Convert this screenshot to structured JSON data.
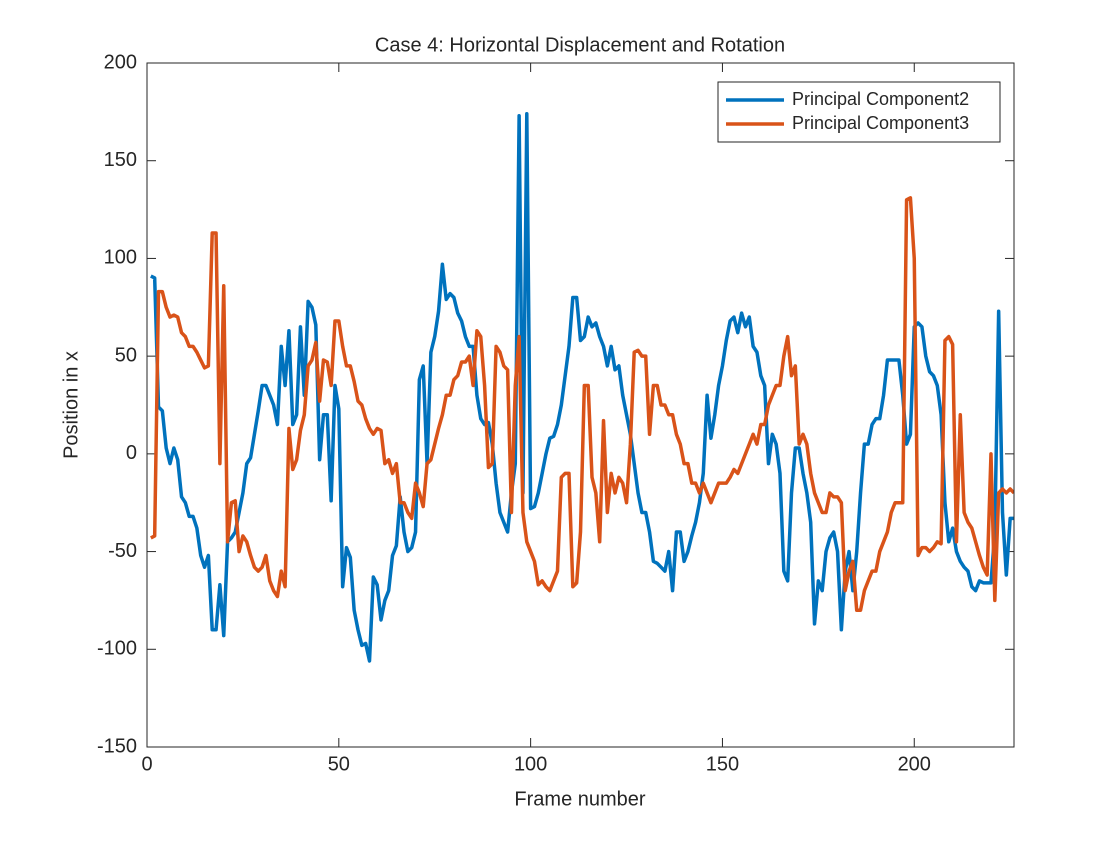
{
  "chart_data": {
    "type": "line",
    "title": "Case 4: Horizontal Displacement and Rotation",
    "x_label": "Frame number",
    "y_label": "Position in x",
    "x": [
      1,
      2,
      3,
      4,
      5,
      6,
      7,
      8,
      9,
      10,
      11,
      12,
      13,
      14,
      15,
      16,
      17,
      18,
      19,
      20,
      21,
      22,
      23,
      24,
      25,
      26,
      27,
      28,
      29,
      30,
      31,
      32,
      33,
      34,
      35,
      36,
      37,
      38,
      39,
      40,
      41,
      42,
      43,
      44,
      45,
      46,
      47,
      48,
      49,
      50,
      51,
      52,
      53,
      54,
      55,
      56,
      57,
      58,
      59,
      60,
      61,
      62,
      63,
      64,
      65,
      66,
      67,
      68,
      69,
      70,
      71,
      72,
      73,
      74,
      75,
      76,
      77,
      78,
      79,
      80,
      81,
      82,
      83,
      84,
      85,
      86,
      87,
      88,
      89,
      90,
      91,
      92,
      93,
      94,
      95,
      96,
      97,
      98,
      99,
      100,
      101,
      102,
      103,
      104,
      105,
      106,
      107,
      108,
      109,
      110,
      111,
      112,
      113,
      114,
      115,
      116,
      117,
      118,
      119,
      120,
      121,
      122,
      123,
      124,
      125,
      126,
      127,
      128,
      129,
      130,
      131,
      132,
      133,
      134,
      135,
      136,
      137,
      138,
      139,
      140,
      141,
      142,
      143,
      144,
      145,
      146,
      147,
      148,
      149,
      150,
      151,
      152,
      153,
      154,
      155,
      156,
      157,
      158,
      159,
      160,
      161,
      162,
      163,
      164,
      165,
      166,
      167,
      168,
      169,
      170,
      171,
      172,
      173,
      174,
      175,
      176,
      177,
      178,
      179,
      180,
      181,
      182,
      183,
      184,
      185,
      186,
      187,
      188,
      189,
      190,
      191,
      192,
      193,
      194,
      195,
      196,
      197,
      198,
      199,
      200,
      201,
      202,
      203,
      204,
      205,
      206,
      207,
      208,
      209,
      210,
      211,
      212,
      213,
      214,
      215,
      216,
      217,
      218,
      219,
      220,
      221,
      222,
      223,
      224,
      225,
      226
    ],
    "series": [
      {
        "name": "Principal Component2",
        "color": "#0072BD",
        "values": [
          91,
          90,
          24,
          22,
          3,
          -5,
          3,
          -3,
          -22,
          -25,
          -32,
          -32,
          -38,
          -52,
          -58,
          -52,
          -90,
          -90,
          -67,
          -93,
          -45,
          -43,
          -40,
          -30,
          -20,
          -5,
          -2,
          10,
          22,
          35,
          35,
          30,
          25,
          15,
          55,
          35,
          63,
          15,
          20,
          65,
          30,
          78,
          75,
          66,
          -3,
          20,
          20,
          -24,
          35,
          23,
          -68,
          -48,
          -53,
          -80,
          -90,
          -98,
          -97,
          -106,
          -63,
          -67,
          -85,
          -75,
          -70,
          -52,
          -47,
          -22,
          -40,
          -50,
          -48,
          -40,
          38,
          45,
          -5,
          52,
          60,
          73,
          97,
          79,
          82,
          80,
          72,
          68,
          60,
          55,
          55,
          30,
          18,
          15,
          16,
          5,
          -15,
          -30,
          -35,
          -40,
          -20,
          -5,
          173,
          -20,
          174,
          -28,
          -27,
          -20,
          -10,
          0,
          8,
          9,
          15,
          25,
          40,
          55,
          80,
          80,
          58,
          60,
          70,
          65,
          67,
          60,
          55,
          45,
          55,
          43,
          45,
          30,
          20,
          10,
          -5,
          -20,
          -30,
          -30,
          -40,
          -55,
          -56,
          -58,
          -60,
          -50,
          -70,
          -40,
          -40,
          -55,
          -50,
          -42,
          -35,
          -25,
          -10,
          30,
          8,
          20,
          35,
          45,
          58,
          68,
          70,
          62,
          72,
          65,
          70,
          55,
          52,
          40,
          35,
          -5,
          10,
          5,
          -10,
          -60,
          -65,
          -20,
          3,
          3,
          -10,
          -20,
          -35,
          -87,
          -65,
          -70,
          -50,
          -43,
          -40,
          -50,
          -90,
          -60,
          -50,
          -70,
          -50,
          -20,
          5,
          5,
          15,
          18,
          18,
          30,
          48,
          48,
          48,
          48,
          30,
          5,
          10,
          65,
          67,
          65,
          50,
          42,
          40,
          35,
          20,
          -25,
          -45,
          -38,
          -50,
          -55,
          -58,
          -60,
          -68,
          -70,
          -65,
          -66,
          -66,
          -66,
          -40,
          73,
          -30,
          -62,
          -33,
          -33
        ]
      },
      {
        "name": "Principal Component3",
        "color": "#D95319",
        "values": [
          -43,
          -42,
          83,
          83,
          75,
          70,
          71,
          70,
          62,
          60,
          55,
          55,
          52,
          48,
          44,
          45,
          113,
          113,
          -5,
          86,
          -45,
          -25,
          -24,
          -50,
          -42,
          -45,
          -52,
          -58,
          -60,
          -58,
          -52,
          -65,
          -70,
          -73,
          -60,
          -68,
          13,
          -8,
          -3,
          12,
          20,
          45,
          48,
          57,
          27,
          48,
          47,
          35,
          68,
          68,
          55,
          45,
          45,
          37,
          27,
          25,
          18,
          13,
          10,
          13,
          12,
          -5,
          -3,
          -10,
          -5,
          -25,
          -25,
          -30,
          -33,
          -15,
          -20,
          -27,
          -5,
          -3,
          5,
          13,
          20,
          30,
          30,
          38,
          40,
          47,
          47,
          50,
          35,
          63,
          60,
          35,
          -7,
          -5,
          55,
          52,
          45,
          43,
          -30,
          35,
          60,
          -30,
          -45,
          -50,
          -55,
          -67,
          -65,
          -68,
          -70,
          -65,
          -60,
          -12,
          -10,
          -10,
          -68,
          -66,
          -40,
          35,
          35,
          -12,
          -20,
          -45,
          17,
          -30,
          -10,
          -20,
          -12,
          -15,
          -25,
          5,
          52,
          53,
          50,
          50,
          10,
          35,
          35,
          25,
          25,
          20,
          20,
          10,
          5,
          -5,
          -5,
          -15,
          -15,
          -20,
          -15,
          -20,
          -25,
          -20,
          -15,
          -15,
          -15,
          -12,
          -8,
          -10,
          -5,
          0,
          5,
          10,
          5,
          15,
          15,
          25,
          30,
          35,
          35,
          50,
          60,
          40,
          45,
          5,
          10,
          5,
          -10,
          -20,
          -25,
          -30,
          -30,
          -20,
          -22,
          -22,
          -25,
          -70,
          -60,
          -55,
          -80,
          -80,
          -70,
          -65,
          -60,
          -60,
          -50,
          -45,
          -40,
          -30,
          -25,
          -25,
          -25,
          130,
          131,
          100,
          -52,
          -48,
          -48,
          -50,
          -48,
          -45,
          -46,
          58,
          60,
          56,
          -45,
          20,
          -30,
          -35,
          -38,
          -45,
          -52,
          -58,
          -62,
          0,
          -75,
          -20,
          -18,
          -20,
          -18,
          -20
        ]
      }
    ],
    "xlim": [
      0,
      226
    ],
    "ylim": [
      -150,
      200
    ],
    "xticks": [
      0,
      50,
      100,
      150,
      200
    ],
    "yticks": [
      -150,
      -100,
      -50,
      0,
      50,
      100,
      150,
      200
    ],
    "grid": false,
    "legend": "top-right"
  }
}
